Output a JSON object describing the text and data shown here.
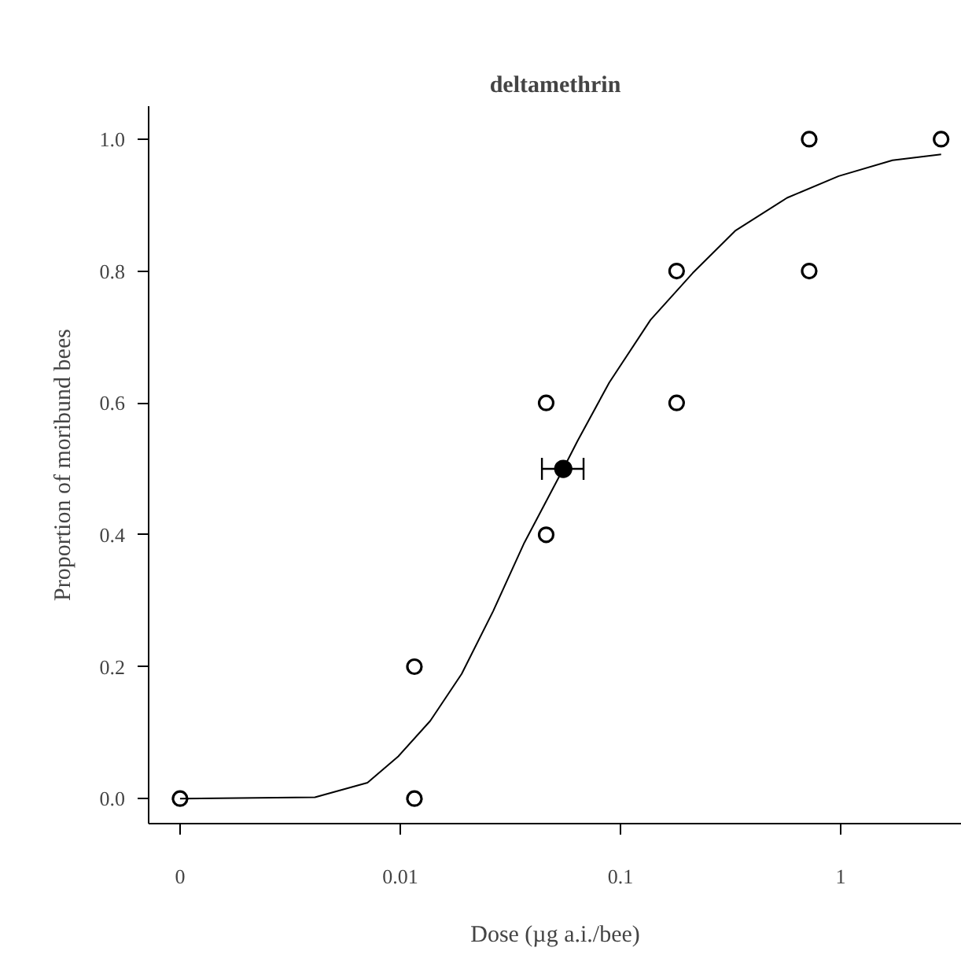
{
  "chart_data": {
    "type": "scatter",
    "title": "deltamethrin",
    "xlabel": "Dose (µg a.i./bee)",
    "ylabel": "Proportion of moribund bees",
    "log": "x",
    "grid": false,
    "marker": "circle",
    "xlim": [
      0.00072,
      3.55
    ],
    "ylim": [
      -0.038,
      1.05
    ],
    "xticks": [
      {
        "value": 0.001,
        "label": "0"
      },
      0.01,
      0.1,
      1
    ],
    "yticks": [
      {
        "value": 0,
        "label": "0.0"
      },
      {
        "value": 0.2,
        "label": "0.2"
      },
      {
        "value": 0.4,
        "label": "0.4"
      },
      {
        "value": 0.6,
        "label": "0.6"
      },
      {
        "value": 0.8,
        "label": "0.8"
      },
      {
        "value": 1,
        "label": "1.0"
      }
    ],
    "series": [
      {
        "type": "line",
        "color": "#000000",
        "marker": "none",
        "x": [
          0.001,
          0.0041,
          0.0071,
          0.0098,
          0.0137,
          0.019,
          0.0264,
          0.0366,
          0.055,
          0.064,
          0.089,
          0.137,
          0.213,
          0.332,
          0.571,
          0.98,
          1.72,
          2.86
        ],
        "values": [
          0,
          0.002,
          0.024,
          0.064,
          0.118,
          0.189,
          0.284,
          0.388,
          0.5,
          0.543,
          0.631,
          0.726,
          0.797,
          0.861,
          0.911,
          0.944,
          0.968,
          0.977
        ]
      },
      {
        "color": "#000000",
        "x": [
          0.001,
          0.0116,
          0.0116,
          0.046,
          0.046,
          0.18,
          0.18,
          0.72,
          0.72,
          2.86
        ],
        "values": [
          0,
          0.2,
          0,
          0.6,
          0.4,
          0.8,
          0.6,
          1,
          0.8,
          1
        ]
      },
      {
        "color": "#000000",
        "x": [
          0.055
        ],
        "values": [
          0.5
        ],
        "xerrors": [
          [
            0.044,
            0.068
          ]
        ]
      }
    ]
  }
}
